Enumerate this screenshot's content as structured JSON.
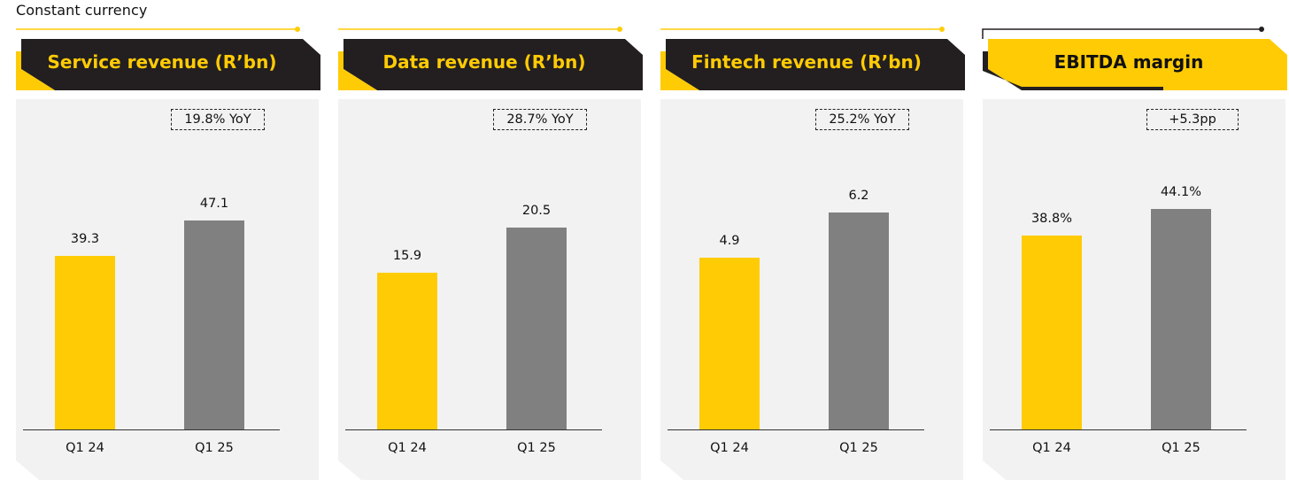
{
  "subtitle": "Constant currency",
  "colors": {
    "brand_yellow": "#FFCB05",
    "header_dark": "#231F20",
    "bar_prior": "#FFCB05",
    "bar_current": "#808080",
    "panel_bg": "#F2F2F2"
  },
  "chart_data": [
    {
      "type": "bar",
      "title": "Service revenue (R’bn)",
      "header_style": "dark",
      "annotation": "19.8% YoY",
      "categories": [
        "Q1 24",
        "Q1 25"
      ],
      "values": [
        39.3,
        47.1
      ],
      "value_labels": [
        "39.3",
        "47.1"
      ],
      "ylim": [
        0,
        72
      ]
    },
    {
      "type": "bar",
      "title": "Data revenue (R’bn)",
      "header_style": "dark",
      "annotation": "28.7% YoY",
      "categories": [
        "Q1 24",
        "Q1 25"
      ],
      "values": [
        15.9,
        20.5
      ],
      "value_labels": [
        "15.9",
        "20.5"
      ],
      "ylim": [
        0,
        32.3
      ]
    },
    {
      "type": "bar",
      "title": "Fintech revenue (R’bn)",
      "header_style": "dark",
      "annotation": "25.2% YoY",
      "categories": [
        "Q1 24",
        "Q1 25"
      ],
      "values": [
        4.9,
        6.2
      ],
      "value_labels": [
        "4.9",
        "6.2"
      ],
      "ylim": [
        0,
        9.1
      ]
    },
    {
      "type": "bar",
      "title": "EBITDA margin",
      "header_style": "light",
      "annotation": "+5.3pp",
      "categories": [
        "Q1 24",
        "Q1 25"
      ],
      "values": [
        38.8,
        44.1
      ],
      "value_labels": [
        "38.8%",
        "44.1%"
      ],
      "ylim": [
        0,
        63.8
      ]
    }
  ]
}
